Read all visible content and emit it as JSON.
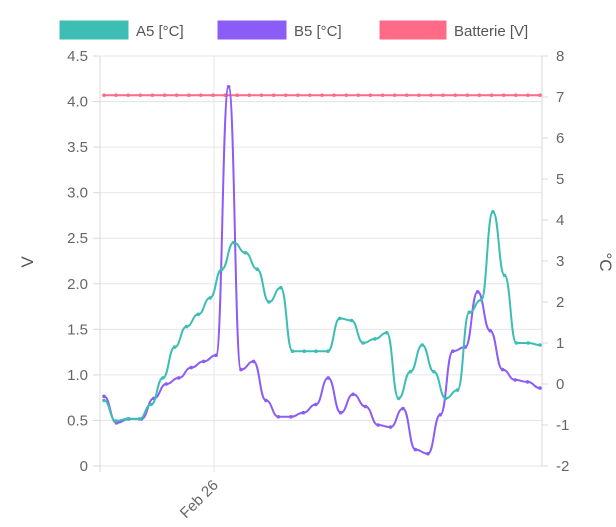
{
  "chart_data": {
    "type": "line",
    "x_tick_labels": [
      "Feb 26"
    ],
    "ylabel_left": "V",
    "ylabel_right": "°C",
    "left_axis": {
      "min": 0,
      "max": 4.5,
      "ticks": [
        "0",
        "0.5",
        "1.0",
        "1.5",
        "2.0",
        "2.5",
        "3.0",
        "3.5",
        "4.0",
        "4.5"
      ]
    },
    "right_axis": {
      "min": -2,
      "max": 8,
      "ticks": [
        "-2",
        "-1",
        "0",
        "1",
        "2",
        "3",
        "4",
        "5",
        "6",
        "7",
        "8"
      ]
    },
    "grid": true,
    "legend_position": "top",
    "series": [
      {
        "name": "A5 [°C]",
        "axis": "right",
        "color": "#3dbdb4",
        "values": [
          -0.4,
          -0.9,
          -0.85,
          -0.85,
          -0.5,
          0.15,
          0.9,
          1.4,
          1.7,
          2.1,
          2.8,
          3.45,
          3.2,
          2.8,
          2.0,
          2.35,
          0.8,
          0.8,
          0.8,
          0.8,
          1.6,
          1.55,
          1.0,
          1.1,
          1.25,
          -0.35,
          0.3,
          0.95,
          0.3,
          -0.35,
          -0.15,
          1.75,
          2.05,
          4.2,
          2.65,
          1.0,
          1.0,
          0.95
        ]
      },
      {
        "name": "B5 [°C]",
        "axis": "right",
        "color": "#8b5cf6",
        "values": [
          -0.3,
          -0.95,
          -0.85,
          -0.85,
          -0.35,
          0.0,
          0.15,
          0.4,
          0.55,
          0.7,
          7.25,
          0.35,
          0.55,
          -0.4,
          -0.8,
          -0.8,
          -0.7,
          -0.5,
          0.15,
          -0.7,
          -0.25,
          -0.55,
          -1.0,
          -1.05,
          -0.6,
          -1.6,
          -1.7,
          -0.75,
          0.8,
          0.9,
          2.25,
          1.3,
          0.35,
          0.1,
          0.05,
          -0.1
        ]
      },
      {
        "name": "Batterie [V]",
        "axis": "left",
        "color": "#ff6b87",
        "values": [
          4.07,
          4.07,
          4.07,
          4.07,
          4.07,
          4.07,
          4.07,
          4.07,
          4.07,
          4.07,
          4.07,
          4.07,
          4.07,
          4.07,
          4.07,
          4.07,
          4.07,
          4.07,
          4.07,
          4.07,
          4.07,
          4.07,
          4.07,
          4.07,
          4.07,
          4.07,
          4.07,
          4.07,
          4.07,
          4.07,
          4.07,
          4.07,
          4.07,
          4.07,
          4.07,
          4.07,
          4.07
        ]
      }
    ]
  }
}
